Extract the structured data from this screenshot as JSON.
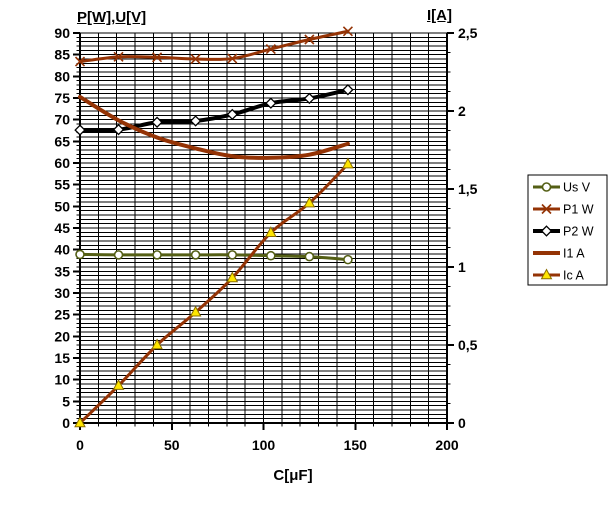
{
  "chart_data": {
    "type": "line",
    "title": "",
    "x_label": "C[μF]",
    "x_points": [
      0,
      21,
      42,
      63,
      83,
      104,
      125,
      146
    ],
    "x_axis": {
      "min": 0,
      "max": 200,
      "major": 50,
      "minor": 10,
      "tick_labels": [
        "0",
        "50",
        "100",
        "150",
        "200"
      ]
    },
    "left_axis": {
      "title": "P[W],U[V]",
      "min": 0,
      "max": 90,
      "major": 5,
      "minor": 1,
      "tick_labels": [
        "0",
        "5",
        "10",
        "15",
        "20",
        "25",
        "30",
        "35",
        "40",
        "45",
        "50",
        "55",
        "60",
        "65",
        "70",
        "75",
        "80",
        "85",
        "90"
      ]
    },
    "right_axis": {
      "title": "I[A]",
      "min": 0,
      "max": 2.5,
      "major": 0.5,
      "minor": 0.125,
      "tick_labels": [
        "0",
        "0,5",
        "1",
        "1,5",
        "2",
        "2,5"
      ]
    },
    "grid": {
      "horizontal_step": 1,
      "vertical_step": 10,
      "color": "#000000"
    },
    "legend_position": "right",
    "series": [
      {
        "name": "Us V",
        "axis": "left",
        "color": "#545f15",
        "marker": "circle",
        "line_width": 3,
        "values": [
          38.9,
          38.8,
          38.8,
          38.8,
          38.8,
          38.6,
          38.4,
          37.7
        ]
      },
      {
        "name": "P1 W",
        "axis": "left",
        "color": "#943305",
        "marker": "x",
        "line_width": 3,
        "values": [
          83.4,
          84.5,
          84.4,
          84.0,
          84.1,
          86.3,
          88.5,
          90.4
        ]
      },
      {
        "name": "P2 W",
        "axis": "left",
        "color": "#000000",
        "marker": "diamond",
        "line_width": 4,
        "values": [
          67.6,
          67.7,
          69.4,
          69.7,
          71.2,
          73.8,
          74.9,
          76.9
        ]
      },
      {
        "name": "I1 A",
        "axis": "right",
        "color": "#943305",
        "marker": "none",
        "line_width": 4,
        "values": [
          2.09,
          1.94,
          1.83,
          1.76,
          1.71,
          1.7,
          1.72,
          1.79
        ]
      },
      {
        "name": "Ic A",
        "axis": "right",
        "color": "#943305",
        "marker": "triangle",
        "line_width": 3,
        "values": [
          0,
          0.24,
          0.5,
          0.71,
          0.93,
          1.22,
          1.41,
          1.66
        ]
      }
    ],
    "marker_colors": {
      "triangle_fill": "#ffe600",
      "triangle_stroke": "#8a6d00",
      "open_fill": "#ffffff"
    }
  }
}
